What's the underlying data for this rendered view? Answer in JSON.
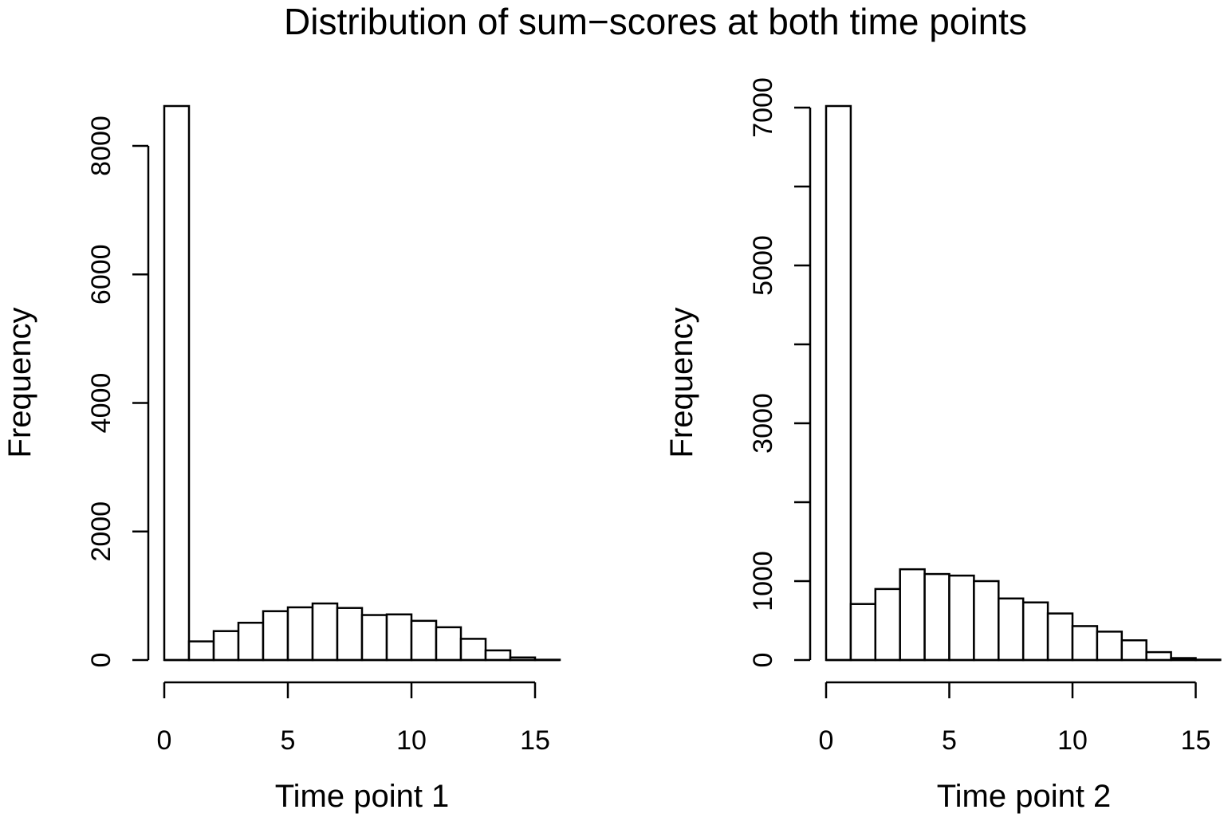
{
  "title": "Distribution of sum−scores at both time points",
  "chart_data": [
    {
      "type": "bar",
      "title": "",
      "xlabel": "Time point 1",
      "ylabel": "Frequency",
      "bin_edges": [
        0,
        1,
        2,
        3,
        4,
        5,
        6,
        7,
        8,
        9,
        10,
        11,
        12,
        13,
        14,
        15,
        16
      ],
      "values": [
        8620,
        290,
        450,
        580,
        760,
        820,
        880,
        810,
        700,
        710,
        610,
        510,
        330,
        150,
        40,
        5
      ],
      "xlim": [
        0,
        16
      ],
      "ylim": [
        0,
        8620
      ],
      "xticks": [
        0,
        5,
        10,
        15
      ],
      "yticks": [
        0,
        2000,
        4000,
        6000,
        8000
      ],
      "grid": false
    },
    {
      "type": "bar",
      "title": "",
      "xlabel": "Time point 2",
      "ylabel": "Frequency",
      "bin_edges": [
        0,
        1,
        2,
        3,
        4,
        5,
        6,
        7,
        8,
        9,
        10,
        11,
        12,
        13,
        14,
        15,
        16
      ],
      "values": [
        7020,
        710,
        900,
        1150,
        1090,
        1070,
        1000,
        780,
        730,
        590,
        430,
        360,
        250,
        100,
        25,
        5
      ],
      "xlim": [
        0,
        16
      ],
      "ylim": [
        0,
        7020
      ],
      "xticks": [
        0,
        5,
        10,
        15
      ],
      "yticks": [
        0,
        1000,
        2000,
        3000,
        4000,
        5000,
        6000,
        7000
      ],
      "ytick_labels": [
        "0",
        "1000",
        "",
        "3000",
        "",
        "5000",
        "",
        "7000"
      ],
      "grid": false
    }
  ]
}
